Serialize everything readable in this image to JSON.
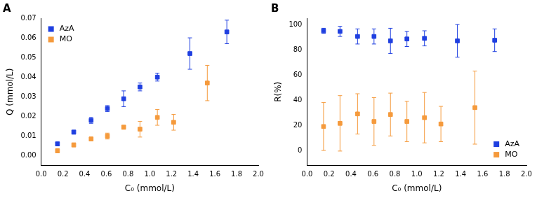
{
  "chart_data": [
    {
      "type": "scatter",
      "title": "A",
      "x_label": "C₀ (mmol/L)",
      "y_label": "Q (mmol/L)",
      "xlim": [
        0,
        2.0
      ],
      "xticks": [
        {
          "value": 0,
          "label": "0.0"
        },
        {
          "value": 0.2,
          "label": "0.2"
        },
        {
          "value": 0.4,
          "label": "0.4"
        },
        {
          "value": 0.6,
          "label": "0.6"
        },
        {
          "value": 0.8,
          "label": "0.8"
        },
        {
          "value": 1.0,
          "label": "1.0"
        },
        {
          "value": 1.2,
          "label": "1.2"
        },
        {
          "value": 1.4,
          "label": "1.4"
        },
        {
          "value": 1.6,
          "label": "1.6"
        },
        {
          "value": 1.8,
          "label": "1.8"
        },
        {
          "value": 2.0,
          "label": "2.0"
        }
      ],
      "ylim": [
        -0.005,
        0.07
      ],
      "yticks": [
        {
          "value": 0,
          "label": "0.00"
        },
        {
          "value": 0.01,
          "label": "0.01"
        },
        {
          "value": 0.02,
          "label": "0.02"
        },
        {
          "value": 0.03,
          "label": "0.03"
        },
        {
          "value": 0.04,
          "label": "0.04"
        },
        {
          "value": 0.05,
          "label": "0.05"
        },
        {
          "value": 0.06,
          "label": "0.06"
        },
        {
          "value": 0.07,
          "label": "0.07"
        }
      ],
      "grid": false,
      "legend": "upper left",
      "series": [
        {
          "name": "AzA",
          "color": "#1f3fe0",
          "marker": "square",
          "x": [
            0.15,
            0.3,
            0.46,
            0.61,
            0.76,
            0.91,
            1.07,
            1.37,
            1.71
          ],
          "values": [
            0.006,
            0.012,
            0.018,
            0.024,
            0.029,
            0.035,
            0.04,
            0.052,
            0.063
          ],
          "errors": [
            0.001,
            0.001,
            0.0015,
            0.0015,
            0.004,
            0.002,
            0.002,
            0.008,
            0.006
          ]
        },
        {
          "name": "MO",
          "color": "#f59a3c",
          "marker": "square",
          "x": [
            0.15,
            0.3,
            0.46,
            0.61,
            0.76,
            0.91,
            1.07,
            1.22,
            1.53
          ],
          "values": [
            0.0025,
            0.0055,
            0.0085,
            0.01,
            0.0145,
            0.0135,
            0.0195,
            0.017,
            0.037
          ],
          "errors": [
            0.001,
            0.001,
            0.001,
            0.0015,
            0.001,
            0.004,
            0.004,
            0.004,
            0.009
          ]
        }
      ]
    },
    {
      "type": "scatter",
      "title": "B",
      "x_label": "C₀ (mmol/L)",
      "y_label": "R(%)",
      "xlim": [
        0,
        2.0
      ],
      "xticks": [
        {
          "value": 0,
          "label": "0.0"
        },
        {
          "value": 0.2,
          "label": "0.2"
        },
        {
          "value": 0.4,
          "label": "0.4"
        },
        {
          "value": 0.6,
          "label": "0.6"
        },
        {
          "value": 0.8,
          "label": "0.8"
        },
        {
          "value": 1.0,
          "label": "1.0"
        },
        {
          "value": 1.2,
          "label": "1.2"
        },
        {
          "value": 1.4,
          "label": "1.4"
        },
        {
          "value": 1.6,
          "label": "1.6"
        },
        {
          "value": 1.8,
          "label": "1.8"
        },
        {
          "value": 2.0,
          "label": "2.0"
        }
      ],
      "ylim": [
        -12,
        105
      ],
      "yticks": [
        0,
        20,
        40,
        60,
        80,
        100
      ],
      "grid": false,
      "legend": "lower right",
      "series": [
        {
          "name": "AzA",
          "color": "#1f3fe0",
          "marker": "square",
          "x": [
            0.15,
            0.3,
            0.46,
            0.61,
            0.76,
            0.91,
            1.07,
            1.37,
            1.71
          ],
          "values": [
            95,
            94.5,
            90.5,
            90.5,
            87,
            88.5,
            89,
            87,
            87.5
          ],
          "errors": [
            2,
            4,
            6,
            6,
            10,
            6,
            6,
            13,
            9
          ]
        },
        {
          "name": "MO",
          "color": "#f59a3c",
          "marker": "square",
          "x": [
            0.15,
            0.3,
            0.46,
            0.61,
            0.76,
            0.91,
            1.07,
            1.22,
            1.53
          ],
          "values": [
            19,
            21.5,
            29,
            23,
            28.5,
            23,
            26,
            21,
            34
          ],
          "errors": [
            19,
            22,
            16,
            19,
            17,
            16,
            20,
            14,
            29
          ]
        }
      ]
    }
  ]
}
